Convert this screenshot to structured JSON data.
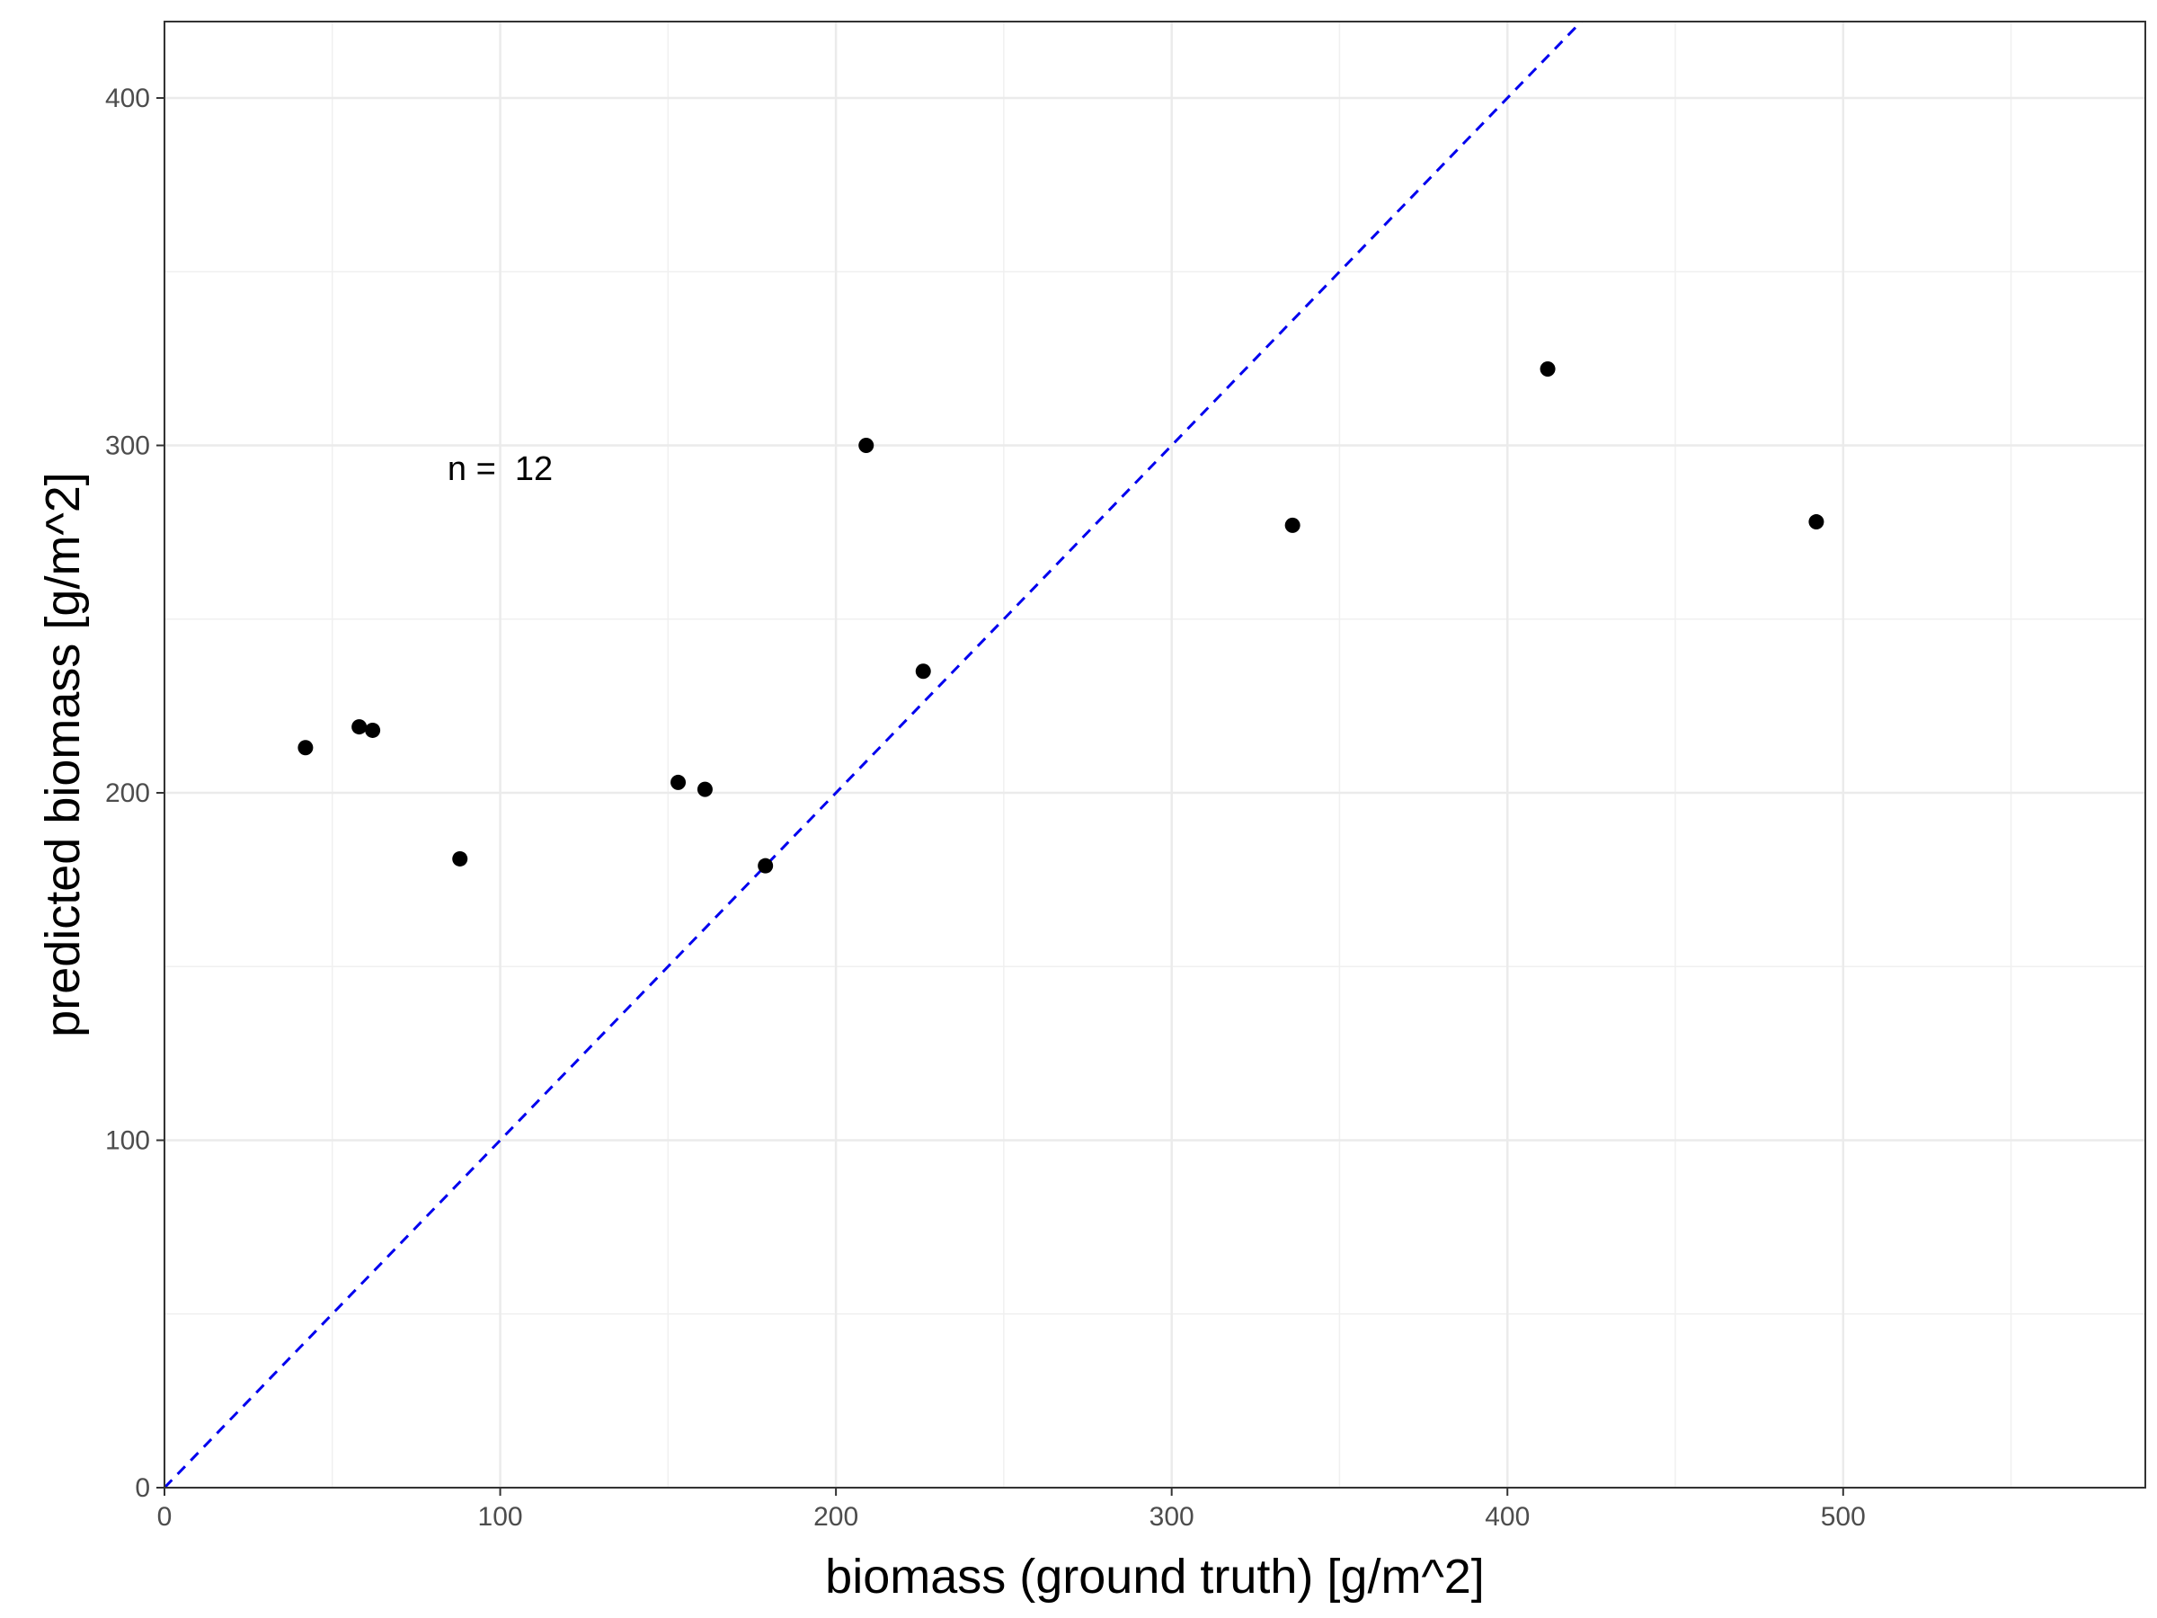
{
  "chart_data": {
    "type": "scatter",
    "xlabel": "biomass (ground truth) [g/m^2]",
    "ylabel": "predicted biomass [g/m^2]",
    "xlim": [
      0,
      590
    ],
    "ylim": [
      0,
      422
    ],
    "x_ticks": [
      0,
      100,
      200,
      300,
      400,
      500
    ],
    "y_ticks": [
      0,
      100,
      200,
      300,
      400
    ],
    "x_tick_labels": [
      "0",
      "100",
      "200",
      "300",
      "400",
      "500"
    ],
    "y_tick_labels": [
      "0",
      "100",
      "200",
      "300",
      "400"
    ],
    "grid": true,
    "legend": "none",
    "annotation": "n =  12",
    "point_color": "#000000",
    "reference_line": {
      "style": "dashed",
      "color": "#0000ee",
      "slope": 1,
      "intercept": 0
    },
    "points": [
      {
        "x": 42,
        "y": 213
      },
      {
        "x": 58,
        "y": 219
      },
      {
        "x": 62,
        "y": 218
      },
      {
        "x": 88,
        "y": 181
      },
      {
        "x": 153,
        "y": 203
      },
      {
        "x": 161,
        "y": 201
      },
      {
        "x": 179,
        "y": 179
      },
      {
        "x": 209,
        "y": 300
      },
      {
        "x": 226,
        "y": 235
      },
      {
        "x": 336,
        "y": 277
      },
      {
        "x": 412,
        "y": 322
      },
      {
        "x": 492,
        "y": 278
      }
    ]
  }
}
